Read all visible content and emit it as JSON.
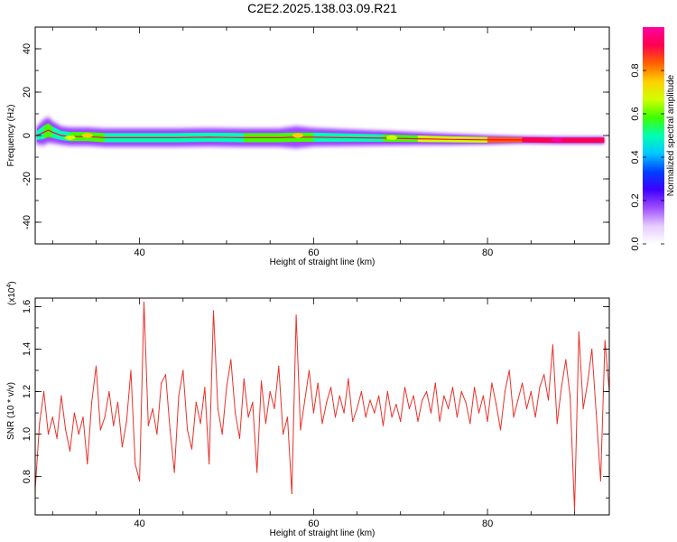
{
  "figure": {
    "title": "C2E2.2025.138.03.09.R21"
  },
  "chart_data": [
    {
      "type": "heatmap",
      "xlabel": "Height of straight line (km)",
      "ylabel": "Frequency (Hz)",
      "xlim": [
        28,
        94
      ],
      "ylim": [
        -50,
        50
      ],
      "x_ticks": [
        40,
        60,
        80
      ],
      "y_ticks": [
        -40,
        -20,
        0,
        20,
        40
      ],
      "x_tick_labels": [
        "40",
        "60",
        "80"
      ],
      "y_tick_labels": [
        "-40",
        "-20",
        "0",
        "20",
        "40"
      ],
      "colorbar": {
        "label": "Normalized spectral amplitude",
        "range": [
          0,
          1
        ],
        "ticks": [
          "0.0",
          "0.2",
          "0.4",
          "0.6",
          "0.8"
        ],
        "tick_values": [
          0.0,
          0.2,
          0.4,
          0.6,
          0.8
        ],
        "colors": [
          "#ffffff",
          "#e6ccff",
          "#9d4dff",
          "#3d00ff",
          "#0040ff",
          "#00c8ff",
          "#00ffb0",
          "#40ff00",
          "#d0ff00",
          "#ffd000",
          "#ff6000",
          "#ff0050",
          "#ff00a0"
        ]
      },
      "ridge": {
        "x": [
          28.2,
          29,
          29.5,
          30,
          31,
          32,
          34,
          36,
          38,
          40,
          44,
          48,
          52,
          56,
          58,
          60,
          64,
          68,
          72,
          76,
          80,
          84,
          88,
          90,
          92,
          93.4
        ],
        "center": [
          0,
          1.5,
          2.5,
          1.5,
          0,
          -0.5,
          -0.5,
          -1,
          -1,
          -1,
          -1,
          -0.8,
          -1,
          -1,
          -0.8,
          -0.8,
          -1,
          -1.2,
          -1.5,
          -1.8,
          -2,
          -2,
          -2.2,
          -2.2,
          -2.2,
          -2.2
        ],
        "halo_halfwidth": [
          5,
          7,
          7,
          6,
          5,
          5,
          5,
          5,
          5,
          5,
          5,
          5,
          5,
          5,
          6,
          5,
          4.5,
          4,
          3.5,
          3,
          2.5,
          2,
          2,
          2,
          2,
          2
        ],
        "core_halfwidth": [
          2,
          3,
          3,
          2.5,
          2,
          2,
          2,
          2,
          2,
          2,
          2,
          2,
          2,
          2,
          2,
          2,
          1.8,
          1.6,
          1.4,
          1.3,
          1.2,
          1.1,
          1.1,
          1.1,
          1.1,
          1.1
        ],
        "core_amplitude": [
          0.45,
          0.55,
          0.6,
          0.55,
          0.5,
          0.55,
          0.6,
          0.55,
          0.5,
          0.5,
          0.5,
          0.5,
          0.55,
          0.55,
          0.6,
          0.5,
          0.5,
          0.55,
          0.6,
          0.65,
          0.75,
          0.85,
          0.95,
          0.95,
          0.95,
          0.95
        ]
      },
      "hotspots": [
        {
          "x": 34,
          "y": 0,
          "value": 0.72
        },
        {
          "x": 32,
          "y": -1,
          "value": 0.68
        },
        {
          "x": 58.2,
          "y": 0,
          "value": 0.74
        },
        {
          "x": 69,
          "y": -1,
          "value": 0.66
        },
        {
          "x": 88,
          "y": -2,
          "value": 0.97
        }
      ]
    },
    {
      "type": "line",
      "xlabel": "Height of straight line (km)",
      "ylabel": "SNR (10 * v/v)",
      "y_multiplier_label": "(x10",
      "y_multiplier_exp": "4",
      "y_multiplier_close": ")",
      "xlim": [
        28,
        94
      ],
      "ylim": [
        0.62,
        1.64
      ],
      "x_ticks": [
        40,
        60,
        80
      ],
      "y_ticks": [
        0.8,
        1.0,
        1.2,
        1.4,
        1.6
      ],
      "x_tick_labels": [
        "40",
        "60",
        "80"
      ],
      "y_tick_labels": [
        "0.8",
        "1.0",
        "1.2",
        "1.4",
        "1.6"
      ],
      "color": "#e8312a",
      "series": [
        {
          "x": [
            28.0,
            28.5,
            29.0,
            29.5,
            30.0,
            30.5,
            31.0,
            31.5,
            32.0,
            32.5,
            33.0,
            33.5,
            34.0,
            34.5,
            35.0,
            35.5,
            36.0,
            36.5,
            37.0,
            37.5,
            38.0,
            38.5,
            39.0,
            39.5,
            40.0,
            40.5,
            41.0,
            41.5,
            42.0,
            42.5,
            43.0,
            43.5,
            44.0,
            44.5,
            45.0,
            45.5,
            46.0,
            46.5,
            47.0,
            47.5,
            48.0,
            48.5,
            49.0,
            49.5,
            50.0,
            50.5,
            51.0,
            51.5,
            52.0,
            52.5,
            53.0,
            53.5,
            54.0,
            54.5,
            55.0,
            55.5,
            56.0,
            56.5,
            57.0,
            57.5,
            58.0,
            58.5,
            59.0,
            59.5,
            60.0,
            60.5,
            61.0,
            61.5,
            62.0,
            62.5,
            63.0,
            63.5,
            64.0,
            64.5,
            65.0,
            65.5,
            66.0,
            66.5,
            67.0,
            67.5,
            68.0,
            68.5,
            69.0,
            69.5,
            70.0,
            70.5,
            71.0,
            71.5,
            72.0,
            72.5,
            73.0,
            73.5,
            74.0,
            74.5,
            75.0,
            75.5,
            76.0,
            76.5,
            77.0,
            77.5,
            78.0,
            78.5,
            79.0,
            79.5,
            80.0,
            80.5,
            81.0,
            81.5,
            82.0,
            82.5,
            83.0,
            83.5,
            84.0,
            84.5,
            85.0,
            85.5,
            86.0,
            86.5,
            87.0,
            87.5,
            88.0,
            88.5,
            89.0,
            89.5,
            90.0,
            90.5,
            91.0,
            91.5,
            92.0,
            92.5,
            93.0,
            93.5,
            94.0
          ],
          "values": [
            0.74,
            1.05,
            1.2,
            1.0,
            1.08,
            0.98,
            1.18,
            1.02,
            0.92,
            1.1,
            1.0,
            1.08,
            0.86,
            1.15,
            1.32,
            1.02,
            1.08,
            1.2,
            1.04,
            1.15,
            0.94,
            1.06,
            1.3,
            0.86,
            0.78,
            1.62,
            1.04,
            1.12,
            1.0,
            1.24,
            1.28,
            1.02,
            0.82,
            1.18,
            1.3,
            1.02,
            0.93,
            1.15,
            1.05,
            1.22,
            0.86,
            1.58,
            1.12,
            1.0,
            1.22,
            1.35,
            1.1,
            0.98,
            1.26,
            1.08,
            1.15,
            0.82,
            1.25,
            1.05,
            1.2,
            1.12,
            1.32,
            1.0,
            1.08,
            0.72,
            1.56,
            1.02,
            1.16,
            1.3,
            1.1,
            1.24,
            1.05,
            1.15,
            1.22,
            1.08,
            1.18,
            1.1,
            1.26,
            1.06,
            1.12,
            1.2,
            1.08,
            1.16,
            1.1,
            1.18,
            1.04,
            1.2,
            1.08,
            1.14,
            1.06,
            1.22,
            1.12,
            1.18,
            1.06,
            1.16,
            1.2,
            1.1,
            1.24,
            1.06,
            1.18,
            1.12,
            1.22,
            1.08,
            1.2,
            1.15,
            1.05,
            1.22,
            1.1,
            1.18,
            1.06,
            1.24,
            1.14,
            1.02,
            1.2,
            1.3,
            1.08,
            1.16,
            1.24,
            1.12,
            1.2,
            1.08,
            1.22,
            1.28,
            1.16,
            1.42,
            1.05,
            1.22,
            1.35,
            1.18,
            0.64,
            1.48,
            1.12,
            1.24,
            1.4,
            1.1,
            0.78,
            1.44,
            1.2
          ]
        }
      ]
    }
  ]
}
